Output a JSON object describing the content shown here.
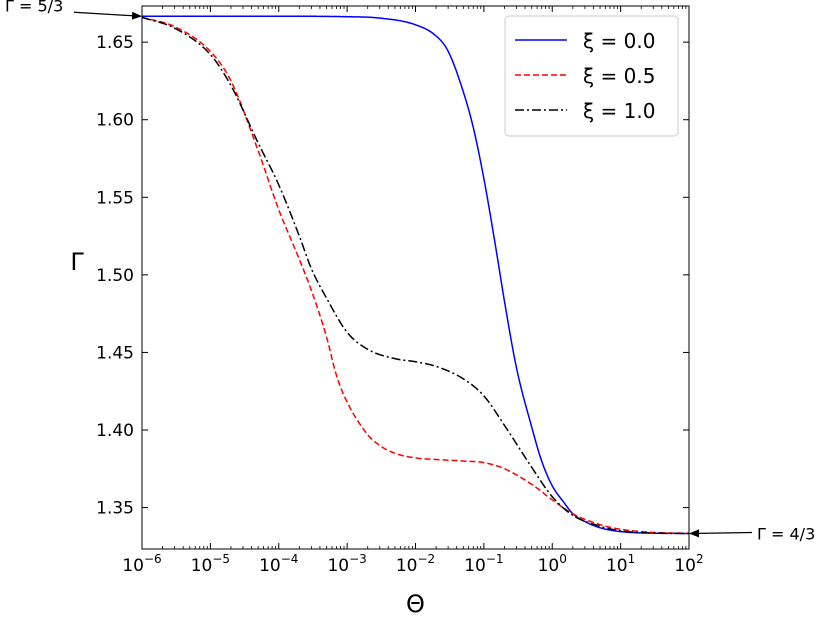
{
  "chart_data": {
    "type": "line",
    "xlabel": "Θ",
    "ylabel": "Γ",
    "x_scale": "log",
    "xlim": [
      1e-06,
      100
    ],
    "ylim": [
      1.3233,
      1.6733
    ],
    "x_ticks": [
      1e-06,
      1e-05,
      0.0001,
      0.001,
      0.01,
      0.1,
      1,
      10,
      100
    ],
    "x_tick_labels": [
      {
        "base": "10",
        "exp": "−6"
      },
      {
        "base": "10",
        "exp": "−5"
      },
      {
        "base": "10",
        "exp": "−4"
      },
      {
        "base": "10",
        "exp": "−3"
      },
      {
        "base": "10",
        "exp": "−2"
      },
      {
        "base": "10",
        "exp": "−1"
      },
      {
        "base": "10",
        "exp": "0"
      },
      {
        "base": "10",
        "exp": "1"
      },
      {
        "base": "10",
        "exp": "2"
      }
    ],
    "y_ticks": [
      1.35,
      1.4,
      1.45,
      1.5,
      1.55,
      1.6,
      1.65
    ],
    "y_tick_labels": [
      "1.35",
      "1.40",
      "1.45",
      "1.50",
      "1.55",
      "1.60",
      "1.65"
    ],
    "grid": false,
    "legend_position": "top-right",
    "series": [
      {
        "name": "ξ = 0.0",
        "color": "#0000ff",
        "dash": "solid",
        "x": [
          1e-06,
          1e-05,
          0.0001,
          0.001,
          0.003,
          0.01,
          0.02,
          0.03,
          0.05,
          0.07,
          0.1,
          0.15,
          0.2,
          0.3,
          0.5,
          0.7,
          1,
          1.5,
          2,
          3,
          5,
          10,
          30,
          100
        ],
        "y": [
          1.6667,
          1.6667,
          1.6667,
          1.6664,
          1.6655,
          1.6612,
          1.654,
          1.6442,
          1.618,
          1.595,
          1.562,
          1.517,
          1.483,
          1.44,
          1.402,
          1.38,
          1.364,
          1.353,
          1.346,
          1.341,
          1.337,
          1.3345,
          1.3335,
          1.3333
        ]
      },
      {
        "name": "ξ = 0.5",
        "color": "#ff0000",
        "dash": "dashed",
        "x": [
          1e-06,
          3e-06,
          1e-05,
          2e-05,
          5e-05,
          0.0001,
          0.0002,
          0.0003,
          0.0005,
          0.0007,
          0.001,
          0.002,
          0.003,
          0.005,
          0.01,
          0.02,
          0.05,
          0.1,
          0.2,
          0.5,
          1,
          2,
          5,
          10,
          30,
          100
        ],
        "y": [
          1.666,
          1.66,
          1.644,
          1.625,
          1.58,
          1.542,
          1.51,
          1.49,
          1.46,
          1.435,
          1.418,
          1.397,
          1.39,
          1.385,
          1.382,
          1.381,
          1.38,
          1.379,
          1.375,
          1.365,
          1.355,
          1.346,
          1.339,
          1.336,
          1.334,
          1.3334
        ]
      },
      {
        "name": "ξ = 1.0",
        "color": "#000000",
        "dash": "dashdot",
        "x": [
          1e-06,
          3e-06,
          1e-05,
          2e-05,
          5e-05,
          0.0001,
          0.0002,
          0.0003,
          0.0005,
          0.001,
          0.002,
          0.005,
          0.01,
          0.02,
          0.05,
          0.1,
          0.2,
          0.5,
          1,
          2,
          5,
          10,
          30,
          100
        ],
        "y": [
          1.666,
          1.659,
          1.642,
          1.622,
          1.585,
          1.558,
          1.525,
          1.504,
          1.485,
          1.463,
          1.452,
          1.446,
          1.444,
          1.441,
          1.433,
          1.422,
          1.403,
          1.376,
          1.357,
          1.345,
          1.338,
          1.335,
          1.3336,
          1.3333
        ]
      }
    ],
    "annotations": [
      {
        "text": "Γ = 5/3",
        "at_x": 1e-06,
        "at_y": 1.6667,
        "side": "left"
      },
      {
        "text": "Γ = 4/3",
        "at_x": 100,
        "at_y": 1.3333,
        "side": "right"
      }
    ]
  }
}
